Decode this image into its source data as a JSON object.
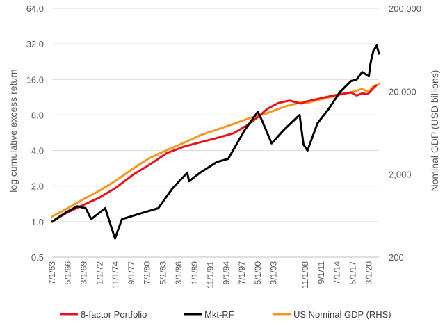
{
  "chart_data": {
    "type": "line",
    "ylabel": "log cumulative excess return",
    "y2label": "Nominal GDP (USD billions)",
    "y_scale": "log",
    "ylim": [
      0.5,
      64.0
    ],
    "y_ticks": [
      0.5,
      1.0,
      2.0,
      4.0,
      8.0,
      16.0,
      32.0,
      64.0
    ],
    "y_tick_labels": [
      "0.5",
      "1.0",
      "2.0",
      "4.0",
      "8.0",
      "16.0",
      "32.0",
      "64.0"
    ],
    "y2_scale": "log",
    "y2lim": [
      200,
      200000
    ],
    "y2_ticks": [
      200,
      2000,
      20000,
      200000
    ],
    "y2_tick_labels": [
      "200",
      "2,000",
      "20,000",
      "200,000"
    ],
    "x_tick_labels": [
      "7/1/63",
      "5/1/66",
      "3/1/69",
      "1/1/72",
      "11/1/74",
      "9/1/77",
      "7/1/80",
      "5/1/83",
      "3/1/86",
      "1/1/89",
      "11/1/91",
      "9/1/94",
      "7/1/97",
      "5/1/00",
      "3/1/03",
      "11/1/08",
      "9/1/11",
      "7/1/14",
      "5/1/17",
      "3/1/20"
    ],
    "x_tick_positions": [
      1963.5,
      1966.33,
      1969.17,
      1972.0,
      1974.83,
      1977.67,
      1980.5,
      1983.33,
      1986.17,
      1989.0,
      1991.83,
      1994.67,
      1997.5,
      2000.33,
      2003.17,
      2008.83,
      2011.67,
      2014.5,
      2017.33,
      2020.17
    ],
    "xlim": [
      1963.5,
      2022.0
    ],
    "grid": "horizontal",
    "legend_position": "bottom",
    "legend": [
      "8-factor Portfolio",
      "Mkt-RF",
      "US Nominal GDP (RHS)"
    ],
    "series": [
      {
        "name": "8-factor Portfolio",
        "color": "#e8141b",
        "axis": "left",
        "x": [
          1963.5,
          1966,
          1969,
          1972,
          1975,
          1978,
          1981,
          1984,
          1987,
          1990,
          1993,
          1996,
          1998.5,
          2000.5,
          2002,
          2004,
          2006,
          2008,
          2009,
          2012,
          2015,
          2017,
          2018,
          2019,
          2020,
          2021,
          2021.5
        ],
        "y": [
          1.0,
          1.18,
          1.38,
          1.6,
          1.95,
          2.5,
          3.05,
          3.8,
          4.3,
          4.7,
          5.1,
          5.6,
          6.6,
          7.8,
          9.0,
          10.1,
          10.6,
          10.0,
          10.4,
          11.2,
          12.0,
          12.4,
          11.7,
          12.2,
          12.0,
          13.5,
          14.2
        ]
      },
      {
        "name": "Mkt-RF",
        "color": "#000000",
        "axis": "left",
        "x": [
          1963.5,
          1966,
          1968,
          1969.5,
          1970.5,
          1973,
          1974.75,
          1976,
          1980,
          1982.5,
          1985,
          1987.7,
          1988,
          1990,
          1993,
          1995,
          1998,
          2000.3,
          2001,
          2002.8,
          2005,
          2007.8,
          2008.5,
          2009.2,
          2011,
          2013,
          2015,
          2017,
          2018,
          2019,
          2020.2,
          2020.5,
          2021,
          2021.6,
          2022
        ],
        "y": [
          1.0,
          1.2,
          1.35,
          1.3,
          1.05,
          1.3,
          0.72,
          1.05,
          1.2,
          1.3,
          1.9,
          2.6,
          2.2,
          2.6,
          3.2,
          3.4,
          6.0,
          8.5,
          7.3,
          4.6,
          6.0,
          8.0,
          4.5,
          4.0,
          6.8,
          9.0,
          12.5,
          15.5,
          16.0,
          18.5,
          17.0,
          22.0,
          28.0,
          31.0,
          26.5
        ]
      },
      {
        "name": "US Nominal GDP (RHS)",
        "color": "#f5961e",
        "axis": "right",
        "x": [
          1963.5,
          1966,
          1969,
          1972,
          1975,
          1978,
          1981,
          1984,
          1987,
          1990,
          1993,
          1996,
          1999,
          2002,
          2005,
          2008,
          2009,
          2011,
          2014,
          2017,
          2019,
          2020.2,
          2020.5,
          2021,
          2022
        ],
        "y": [
          620,
          760,
          990,
          1270,
          1690,
          2350,
          3150,
          3900,
          4750,
          5900,
          6900,
          8100,
          9600,
          10900,
          13000,
          14700,
          14400,
          15600,
          17500,
          19500,
          21400,
          19500,
          21000,
          23000,
          24300
        ]
      }
    ]
  }
}
